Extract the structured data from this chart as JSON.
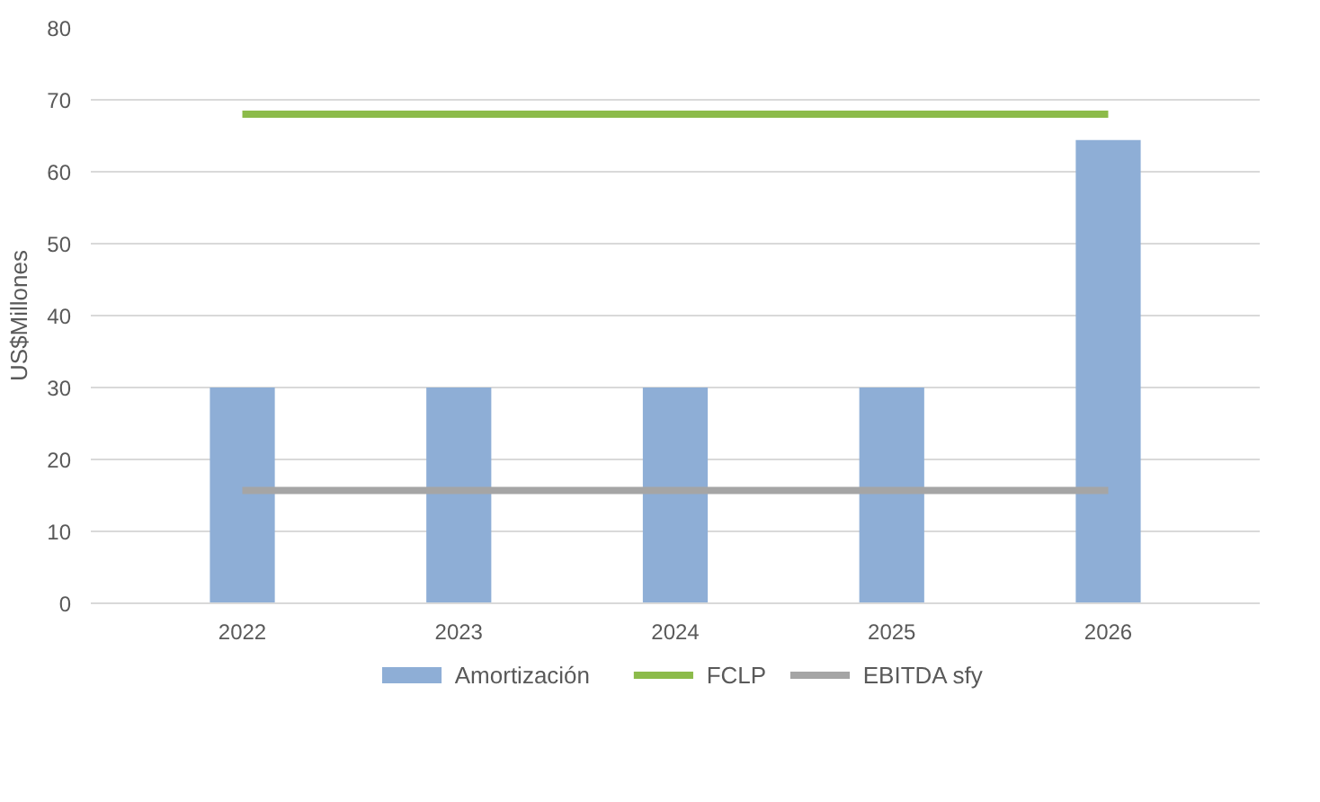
{
  "chart_data": {
    "type": "bar",
    "ylabel": "US$Millones",
    "categories": [
      "2022",
      "2023",
      "2024",
      "2025",
      "2026"
    ],
    "series": [
      {
        "name": "Amortización",
        "color": "#8eaed6",
        "values": [
          30,
          30,
          30,
          30,
          64.4
        ]
      },
      {
        "name": "FCLP",
        "type": "line",
        "color": "#8cbb4a",
        "values": [
          68,
          68,
          68,
          68,
          68
        ]
      },
      {
        "name": "EBITDA sfy",
        "type": "line",
        "color": "#a5a5a5",
        "values": [
          15.7,
          15.7,
          15.7,
          15.7,
          15.7
        ]
      }
    ],
    "ylim": [
      0,
      80
    ],
    "yticks": [
      0,
      10,
      20,
      30,
      40,
      50,
      60,
      70,
      80
    ],
    "grid": "y",
    "legend": "bottom"
  }
}
